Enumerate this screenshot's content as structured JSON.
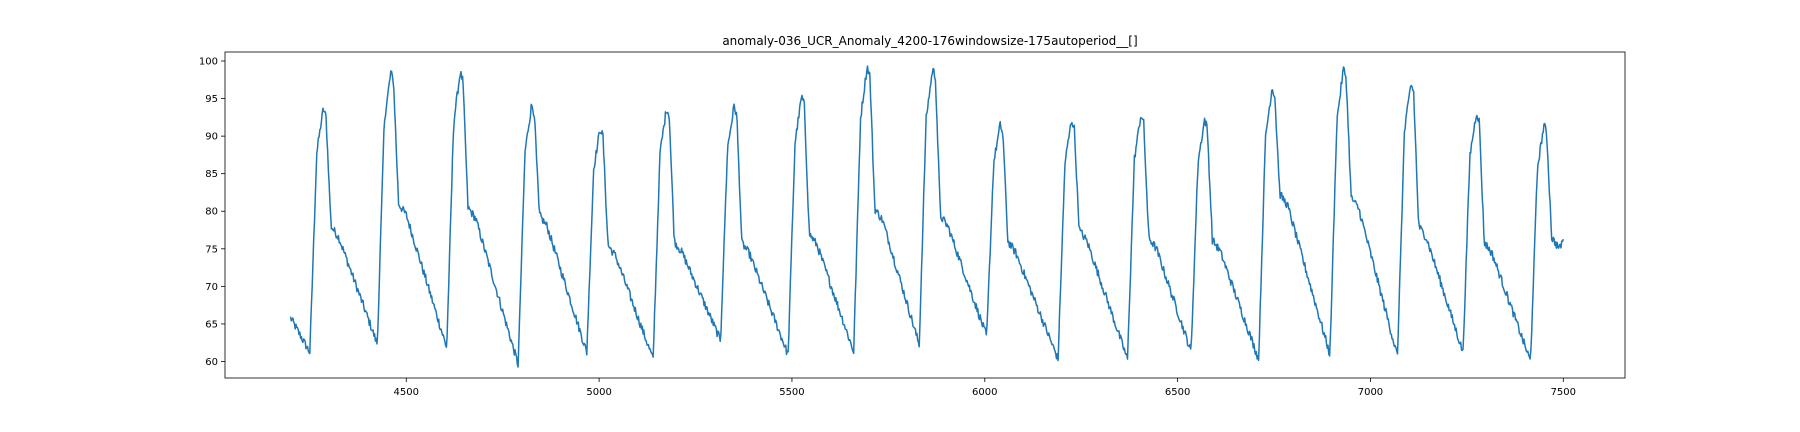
{
  "chart_data": {
    "type": "line",
    "title": "anomaly-036_UCR_Anomaly_4200-176windowsize-175autoperiod__[]",
    "xlabel": "",
    "ylabel": "",
    "xlim": [
      4030,
      7660
    ],
    "ylim": [
      57.8,
      101.2
    ],
    "xticks": [
      4500,
      5000,
      5500,
      6000,
      6500,
      7000,
      7500
    ],
    "yticks": [
      60,
      65,
      70,
      75,
      80,
      85,
      90,
      95,
      100
    ],
    "grid": false,
    "legend": "none",
    "series": [
      {
        "color": "#1f77b4",
        "x_start": 4200,
        "x_end": 7500,
        "cycle_starts": [
          4250,
          4425,
          4605,
          4790,
          4968,
          5140,
          5315,
          5490,
          5660,
          5830,
          6005,
          6190,
          6370,
          6535,
          6710,
          6895,
          7070,
          7240,
          7415
        ],
        "cycle_peaks": [
          93.7,
          98.5,
          98.5,
          94.2,
          91.1,
          93.8,
          94.0,
          95.3,
          99.3,
          99.0,
          91.5,
          92.2,
          92.9,
          92.2,
          96.5,
          99.0,
          97.0,
          93.2,
          91.5
        ],
        "cycle_troughs": [
          61.2,
          62.3,
          61.8,
          59.6,
          61.2,
          60.3,
          62.8,
          60.9,
          61.3,
          62.2,
          63.3,
          60.3,
          60.3,
          61.3,
          60.3,
          60.9,
          60.7,
          61.2,
          60.0
        ],
        "cycle_shoulders": [
          78.0,
          81.0,
          80.5,
          79.5,
          75.5,
          76.0,
          75.8,
          77.0,
          80.3,
          79.4,
          76.0,
          77.5,
          76.5,
          76.2,
          82.3,
          81.8,
          78.0,
          75.9,
          76.5
        ],
        "start_value": 65.8,
        "end_value": 76.3
      }
    ]
  }
}
